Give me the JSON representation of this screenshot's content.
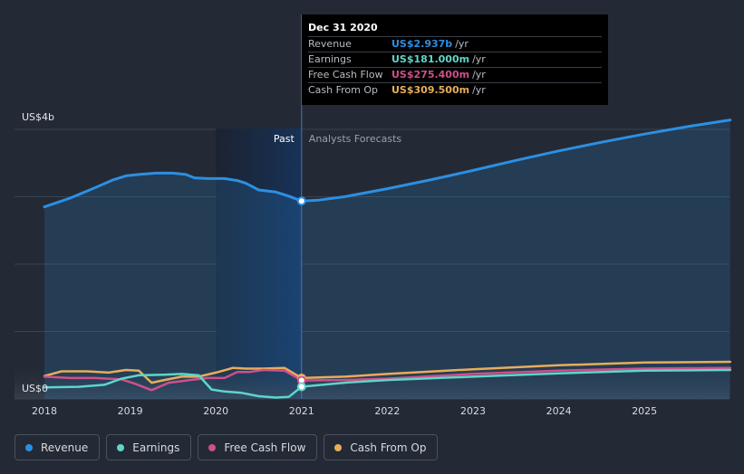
{
  "chart_data": {
    "type": "line",
    "ylabel_top": "US$4b",
    "ylabel_bottom": "US$0",
    "ylim": [
      0,
      4.0
    ],
    "xlim": [
      2018,
      2026
    ],
    "x_ticks": [
      "2018",
      "2019",
      "2020",
      "2021",
      "2022",
      "2023",
      "2024",
      "2025"
    ],
    "x_tick_values": [
      2018,
      2019,
      2020,
      2021,
      2022,
      2023,
      2024,
      2025
    ],
    "divider_x": 2021,
    "shade_start_x": 2020,
    "past_label": "Past",
    "forecast_label": "Analysts Forecasts",
    "grid": true,
    "series": [
      {
        "name": "Revenue",
        "color": "#2d8fe1",
        "fill": true,
        "points": [
          [
            2018.0,
            2.85
          ],
          [
            2018.3,
            2.98
          ],
          [
            2018.6,
            3.14
          ],
          [
            2018.8,
            3.25
          ],
          [
            2018.95,
            3.31
          ],
          [
            2019.1,
            3.33
          ],
          [
            2019.3,
            3.35
          ],
          [
            2019.5,
            3.35
          ],
          [
            2019.65,
            3.33
          ],
          [
            2019.75,
            3.28
          ],
          [
            2019.9,
            3.27
          ],
          [
            2020.1,
            3.27
          ],
          [
            2020.25,
            3.24
          ],
          [
            2020.35,
            3.2
          ],
          [
            2020.5,
            3.1
          ],
          [
            2020.7,
            3.07
          ],
          [
            2020.85,
            3.01
          ],
          [
            2021.0,
            2.937
          ],
          [
            2021.2,
            2.95
          ],
          [
            2021.5,
            3.0
          ],
          [
            2022.0,
            3.12
          ],
          [
            2022.5,
            3.25
          ],
          [
            2023.0,
            3.39
          ],
          [
            2023.5,
            3.54
          ],
          [
            2024.0,
            3.68
          ],
          [
            2024.5,
            3.81
          ],
          [
            2025.0,
            3.93
          ],
          [
            2025.5,
            4.04
          ],
          [
            2026.0,
            4.14
          ]
        ],
        "current": [
          2021.0,
          2.937
        ]
      },
      {
        "name": "Earnings",
        "color": "#5ed6c8",
        "fill": false,
        "points": [
          [
            2018.0,
            0.17
          ],
          [
            2018.4,
            0.18
          ],
          [
            2018.7,
            0.21
          ],
          [
            2018.9,
            0.3
          ],
          [
            2019.1,
            0.35
          ],
          [
            2019.4,
            0.36
          ],
          [
            2019.6,
            0.37
          ],
          [
            2019.8,
            0.35
          ],
          [
            2019.95,
            0.14
          ],
          [
            2020.1,
            0.11
          ],
          [
            2020.3,
            0.09
          ],
          [
            2020.5,
            0.04
          ],
          [
            2020.7,
            0.02
          ],
          [
            2020.85,
            0.03
          ],
          [
            2021.0,
            0.181
          ],
          [
            2021.5,
            0.24
          ],
          [
            2022.0,
            0.28
          ],
          [
            2023.0,
            0.33
          ],
          [
            2024.0,
            0.38
          ],
          [
            2025.0,
            0.42
          ],
          [
            2026.0,
            0.43
          ]
        ],
        "current": [
          2021.0,
          0.181
        ]
      },
      {
        "name": "Free Cash Flow",
        "color": "#cf4f8c",
        "fill": false,
        "points": [
          [
            2018.0,
            0.33
          ],
          [
            2018.3,
            0.31
          ],
          [
            2018.6,
            0.31
          ],
          [
            2018.9,
            0.29
          ],
          [
            2019.05,
            0.23
          ],
          [
            2019.25,
            0.13
          ],
          [
            2019.45,
            0.24
          ],
          [
            2019.7,
            0.28
          ],
          [
            2019.9,
            0.31
          ],
          [
            2020.1,
            0.31
          ],
          [
            2020.25,
            0.4
          ],
          [
            2020.4,
            0.4
          ],
          [
            2020.55,
            0.43
          ],
          [
            2020.8,
            0.42
          ],
          [
            2021.0,
            0.2754
          ],
          [
            2021.5,
            0.28
          ],
          [
            2022.0,
            0.3
          ],
          [
            2023.0,
            0.37
          ],
          [
            2024.0,
            0.42
          ],
          [
            2025.0,
            0.45
          ],
          [
            2026.0,
            0.46
          ]
        ],
        "current": [
          2021.0,
          0.2754
        ]
      },
      {
        "name": "Cash From Op",
        "color": "#e8ad5a",
        "fill": false,
        "points": [
          [
            2018.0,
            0.34
          ],
          [
            2018.2,
            0.41
          ],
          [
            2018.5,
            0.41
          ],
          [
            2018.75,
            0.39
          ],
          [
            2018.95,
            0.43
          ],
          [
            2019.1,
            0.42
          ],
          [
            2019.25,
            0.24
          ],
          [
            2019.4,
            0.28
          ],
          [
            2019.6,
            0.33
          ],
          [
            2019.8,
            0.33
          ],
          [
            2020.0,
            0.39
          ],
          [
            2020.2,
            0.46
          ],
          [
            2020.35,
            0.45
          ],
          [
            2020.55,
            0.45
          ],
          [
            2020.8,
            0.46
          ],
          [
            2021.0,
            0.3095
          ],
          [
            2021.5,
            0.33
          ],
          [
            2022.0,
            0.37
          ],
          [
            2023.0,
            0.44
          ],
          [
            2024.0,
            0.5
          ],
          [
            2025.0,
            0.54
          ],
          [
            2026.0,
            0.55
          ]
        ],
        "current": [
          2021.0,
          0.3095
        ]
      }
    ]
  },
  "tooltip": {
    "title": "Dec 31 2020",
    "rows": [
      {
        "label": "Revenue",
        "value": "US$2.937b",
        "unit": "/yr",
        "color": "#2d8fe1"
      },
      {
        "label": "Earnings",
        "value": "US$181.000m",
        "unit": "/yr",
        "color": "#5ed6c8"
      },
      {
        "label": "Free Cash Flow",
        "value": "US$275.400m",
        "unit": "/yr",
        "color": "#cf4f8c"
      },
      {
        "label": "Cash From Op",
        "value": "US$309.500m",
        "unit": "/yr",
        "color": "#e8ad5a"
      }
    ]
  },
  "legend": [
    {
      "label": "Revenue",
      "color": "#2d8fe1"
    },
    {
      "label": "Earnings",
      "color": "#5ed6c8"
    },
    {
      "label": "Free Cash Flow",
      "color": "#cf4f8c"
    },
    {
      "label": "Cash From Op",
      "color": "#e8ad5a"
    }
  ]
}
